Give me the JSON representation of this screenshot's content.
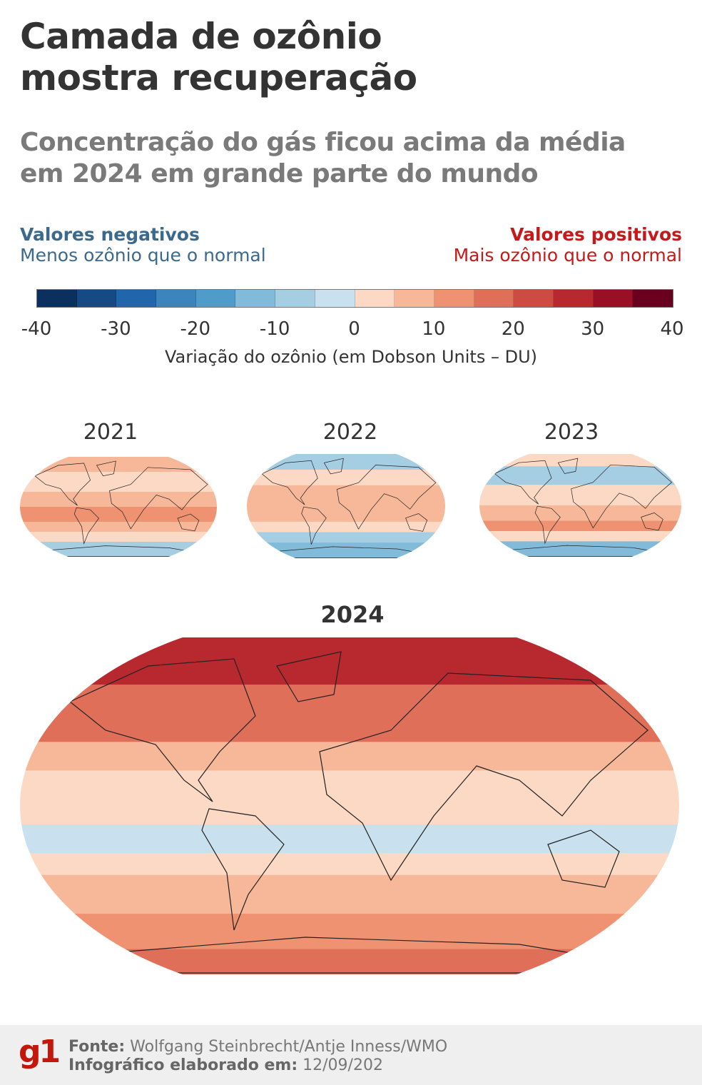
{
  "title": [
    "Camada de ozônio",
    "mostra recuperação"
  ],
  "subtitle": [
    "Concentração do gás ficou acima da média",
    "em 2024 em grande parte do mundo"
  ],
  "legend": {
    "negative": {
      "heading": "Valores negativos",
      "text": "Menos ozônio que o normal",
      "color": "#3b6a8c"
    },
    "positive": {
      "heading": "Valores positivos",
      "text": "Mais ozônio que o normal",
      "color": "#c41a1a"
    }
  },
  "colorbar": {
    "ticks": [
      "-40",
      "-30",
      "-20",
      "-10",
      "0",
      "10",
      "20",
      "30",
      "40"
    ],
    "label": "Variação do ozônio (em Dobson Units – DU)",
    "colors": [
      "#0b305e",
      "#174a85",
      "#2166ac",
      "#3b85bc",
      "#4f9bc9",
      "#82bbd9",
      "#a6cee3",
      "#c9e1ef",
      "#fcd9c4",
      "#f7b899",
      "#ef9272",
      "#e06f59",
      "#cd4b43",
      "#b8282f",
      "#990f25",
      "#6a0020"
    ]
  },
  "maps": [
    {
      "year": "2021"
    },
    {
      "year": "2022"
    },
    {
      "year": "2023"
    },
    {
      "year": "2024"
    }
  ],
  "footer": {
    "logo": "g1",
    "source_label": "Fonte:",
    "source": "Wolfgang Steinbrecht/Antje Inness/WMO",
    "date_label": "Infográfico elaborado em:",
    "date": "12/09/202"
  }
}
